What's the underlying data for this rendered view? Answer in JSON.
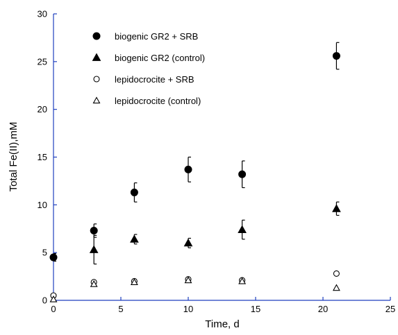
{
  "chart_data": {
    "type": "scatter",
    "xlabel": "Time, d",
    "ylabel": "Total Fe(II),mM",
    "xlim": [
      0,
      25
    ],
    "ylim": [
      0,
      30
    ],
    "xticks": [
      0,
      5,
      10,
      15,
      20,
      25
    ],
    "yticks": [
      0,
      5,
      10,
      15,
      20,
      25,
      30
    ],
    "legend_position": "top-left",
    "grid": false,
    "series": [
      {
        "name": "biogenic GR2 + SRB",
        "marker": "circle-filled",
        "x": [
          0,
          3,
          6,
          10,
          14,
          21
        ],
        "y": [
          4.5,
          7.3,
          11.3,
          13.7,
          13.2,
          25.6
        ],
        "err": [
          0.4,
          0.7,
          1.0,
          1.3,
          1.4,
          1.4
        ]
      },
      {
        "name": "biogenic GR2 (control)",
        "marker": "triangle-filled",
        "x": [
          3,
          6,
          10,
          14,
          21
        ],
        "y": [
          5.3,
          6.4,
          6.0,
          7.4,
          9.6
        ],
        "err": [
          1.5,
          0.5,
          0.5,
          1.0,
          0.7
        ]
      },
      {
        "name": "lepidocrocite + SRB",
        "marker": "circle-open",
        "x": [
          0,
          3,
          6,
          10,
          14,
          21
        ],
        "y": [
          0.5,
          1.9,
          2.0,
          2.2,
          2.1,
          2.8
        ],
        "err": [
          0,
          0,
          0,
          0,
          0,
          0
        ]
      },
      {
        "name": "lepidocrocite (control)",
        "marker": "triangle-open",
        "x": [
          0,
          3,
          6,
          10,
          14,
          21
        ],
        "y": [
          0.1,
          1.7,
          1.9,
          2.1,
          2.0,
          1.3
        ],
        "err": [
          0,
          0,
          0,
          0,
          0,
          0
        ]
      }
    ]
  }
}
